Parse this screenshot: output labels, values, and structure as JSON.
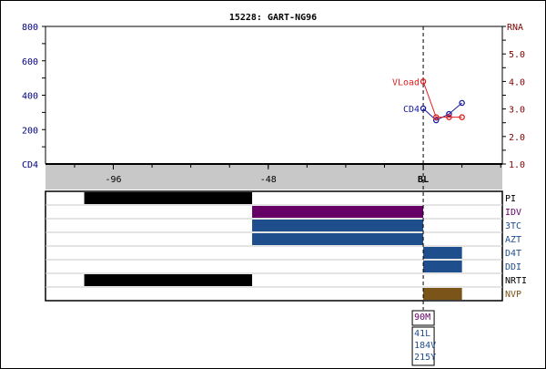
{
  "chart_data": {
    "type": "line",
    "title": "15228: GART-NG96",
    "x_ticks": [
      {
        "value": -96,
        "label": "-96"
      },
      {
        "value": -48,
        "label": "-48"
      },
      {
        "value": 0,
        "label": "BL"
      }
    ],
    "x_range_weeks": [
      -117,
      24.5
    ],
    "x_minor_tick_step": 12,
    "left_axis": {
      "label": "CD4",
      "range": [
        0,
        800
      ],
      "ticks": [
        "200",
        "400",
        "600",
        "800"
      ],
      "color": "#00007f"
    },
    "right_axis": {
      "label": "RNA",
      "range": [
        1.0,
        6.0
      ],
      "ticks": [
        "1.0",
        "2.0",
        "3.0",
        "4.0",
        "5.0"
      ],
      "color": "#7f0000"
    },
    "baseline_marker": 0,
    "series": [
      {
        "name": "CD4",
        "axis": "left",
        "color": "#1a1aa0",
        "x": [
          0,
          4,
          8,
          12
        ],
        "y": [
          323,
          254,
          291,
          355
        ]
      },
      {
        "name": "VLoad",
        "axis": "right",
        "color": "#e02020",
        "x": [
          0,
          4,
          8,
          12
        ],
        "y": [
          4.0,
          2.7,
          2.7,
          2.7
        ]
      }
    ],
    "drugs": [
      {
        "name": "PI",
        "color": "#000000",
        "label_color": "#000000",
        "periods": [
          [
            -105,
            -53
          ]
        ]
      },
      {
        "name": "IDV",
        "color": "#660066",
        "label_color": "#660066",
        "periods": [
          [
            -53,
            0
          ]
        ]
      },
      {
        "name": "3TC",
        "color": "#1f4e8c",
        "label_color": "#1f4e8c",
        "periods": [
          [
            -53,
            0
          ]
        ]
      },
      {
        "name": "AZT",
        "color": "#1f4e8c",
        "label_color": "#1f4e8c",
        "periods": [
          [
            -53,
            0
          ]
        ]
      },
      {
        "name": "D4T",
        "color": "#1f4e8c",
        "label_color": "#1f4e8c",
        "periods": [
          [
            0,
            12
          ]
        ]
      },
      {
        "name": "DDI",
        "color": "#1f4e8c",
        "label_color": "#1f4e8c",
        "periods": [
          [
            0,
            12
          ]
        ]
      },
      {
        "name": "NRTI",
        "color": "#000000",
        "label_color": "#000000",
        "periods": [
          [
            -105,
            -53
          ]
        ]
      },
      {
        "name": "NVP",
        "color": "#7a5418",
        "label_color": "#7a5418",
        "periods": [
          [
            0,
            12
          ]
        ]
      }
    ],
    "mutations": [
      {
        "color": "#660066",
        "items": [
          "90M"
        ]
      },
      {
        "color": "#1f4e8c",
        "items": [
          "41L",
          "184V",
          "215Y"
        ]
      }
    ]
  }
}
